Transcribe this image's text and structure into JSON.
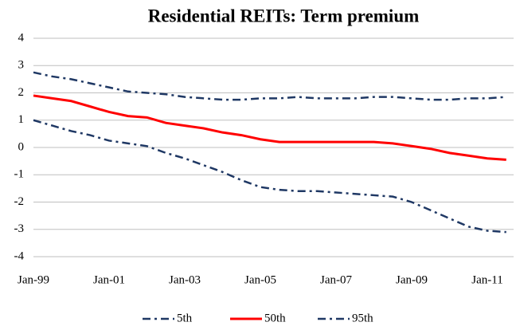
{
  "chart_data": {
    "type": "line",
    "title": "Residential REITs: Term premium",
    "categories": [
      "Jan-99",
      null,
      null,
      null,
      "Jan-01",
      null,
      null,
      null,
      "Jan-03",
      null,
      null,
      null,
      "Jan-05",
      null,
      null,
      null,
      "Jan-07",
      null,
      null,
      null,
      "Jan-09",
      null,
      null,
      null,
      "Jan-11",
      null
    ],
    "series": [
      {
        "name": "5th",
        "color": "#1f3864",
        "dash": "dash-dot",
        "values": [
          1.0,
          0.8,
          0.6,
          0.45,
          0.25,
          0.15,
          0.05,
          -0.2,
          -0.4,
          -0.65,
          -0.9,
          -1.2,
          -1.45,
          -1.55,
          -1.6,
          -1.6,
          -1.65,
          -1.7,
          -1.75,
          -1.8,
          -2.0,
          -2.3,
          -2.6,
          -2.9,
          -3.05,
          -3.1
        ]
      },
      {
        "name": "50th",
        "color": "#ff0000",
        "dash": "solid",
        "values": [
          1.9,
          1.8,
          1.7,
          1.5,
          1.3,
          1.15,
          1.1,
          0.9,
          0.8,
          0.7,
          0.55,
          0.45,
          0.3,
          0.2,
          0.2,
          0.2,
          0.2,
          0.2,
          0.2,
          0.15,
          0.05,
          -0.05,
          -0.2,
          -0.3,
          -0.4,
          -0.45
        ]
      },
      {
        "name": "95th",
        "color": "#1f3864",
        "dash": "dash-dot",
        "values": [
          2.75,
          2.6,
          2.5,
          2.35,
          2.2,
          2.05,
          2.0,
          1.95,
          1.85,
          1.8,
          1.75,
          1.75,
          1.8,
          1.8,
          1.85,
          1.8,
          1.8,
          1.8,
          1.85,
          1.85,
          1.8,
          1.75,
          1.75,
          1.8,
          1.8,
          1.85
        ]
      }
    ],
    "ylim": [
      -4,
      4
    ],
    "yticks": [
      -4,
      -3,
      -2,
      -1,
      0,
      1,
      2,
      3,
      4
    ],
    "grid": true,
    "legend": "bottom"
  }
}
